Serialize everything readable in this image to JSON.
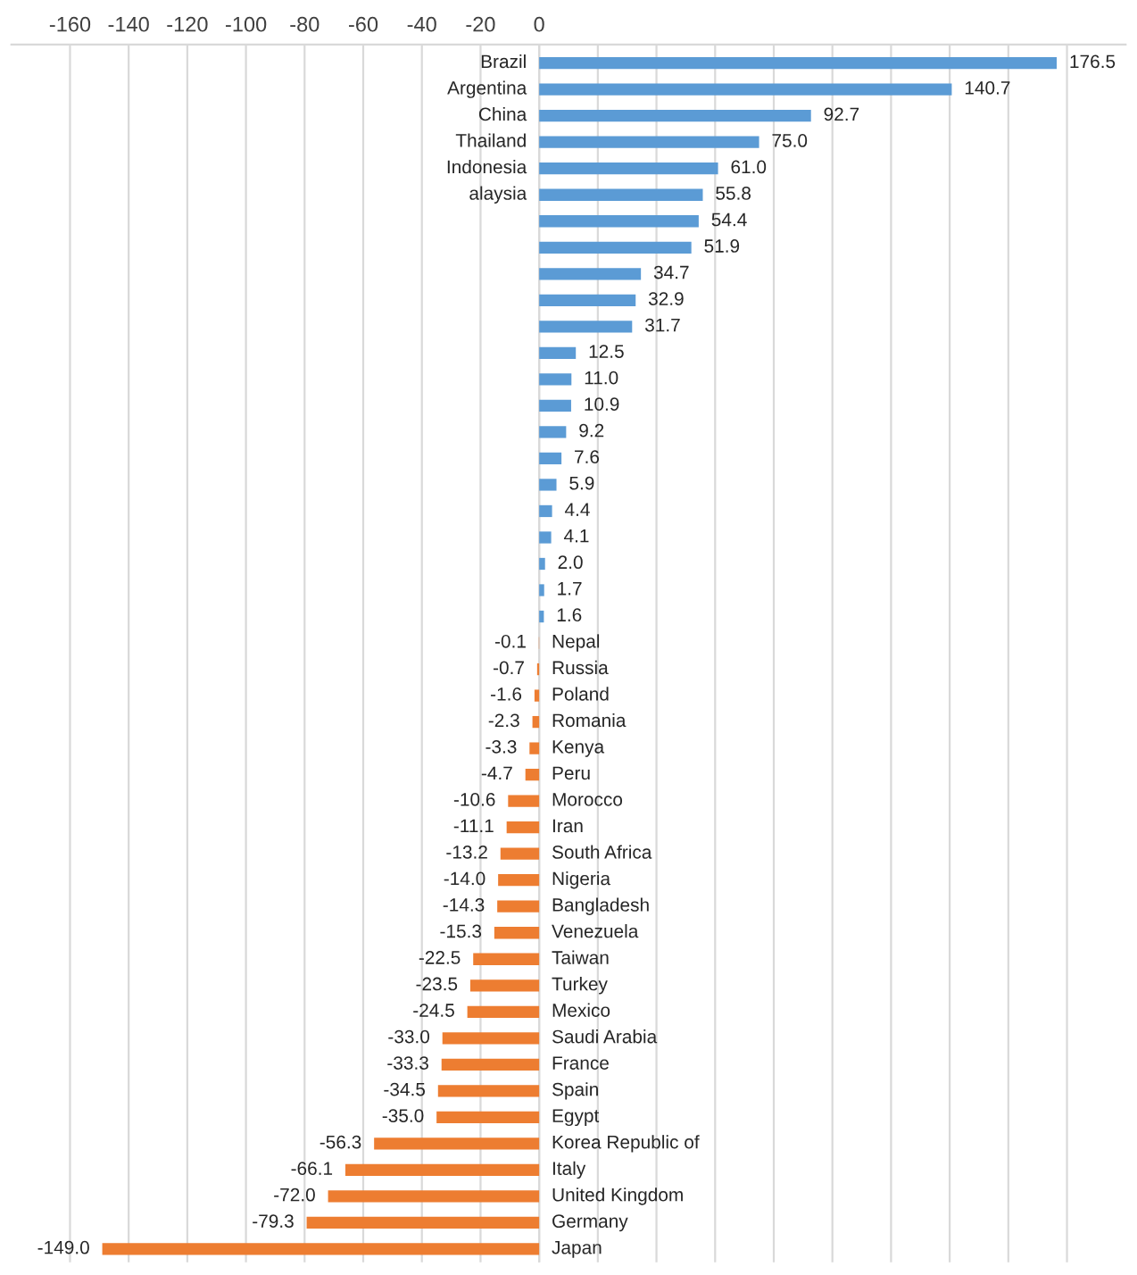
{
  "chart_data": {
    "type": "bar",
    "orientation": "horizontal",
    "categories": [
      "Brazil",
      "Argentina",
      "China",
      "Thailand",
      "Indonesia",
      "alaysia",
      null,
      null,
      null,
      null,
      null,
      null,
      null,
      null,
      null,
      null,
      null,
      null,
      null,
      null,
      null,
      null,
      "Nepal",
      "Russia",
      "Poland",
      "Romania",
      "Kenya",
      "Peru",
      "Morocco",
      "Iran",
      "South Africa",
      "Nigeria",
      "Bangladesh",
      "Venezuela",
      "Taiwan",
      "Turkey",
      "Mexico",
      "Saudi Arabia",
      "France",
      "Spain",
      "Egypt",
      "Korea Republic of",
      "Italy",
      "United Kingdom",
      "Germany",
      "Japan"
    ],
    "values": [
      176.5,
      140.7,
      92.7,
      75.0,
      61.0,
      55.8,
      54.4,
      51.9,
      34.7,
      32.9,
      31.7,
      12.5,
      11.0,
      10.9,
      9.2,
      7.6,
      5.9,
      4.4,
      4.1,
      2.0,
      1.7,
      1.6,
      -0.1,
      -0.7,
      -1.6,
      -2.3,
      -3.3,
      -4.7,
      -10.6,
      -11.1,
      -13.2,
      -14.0,
      -14.3,
      -15.3,
      -22.5,
      -23.5,
      -24.5,
      -33.0,
      -33.3,
      -34.5,
      -35.0,
      -56.3,
      -66.1,
      -72.0,
      -79.3,
      -149.0
    ],
    "colors": [
      "#5b9bd5",
      "#5b9bd5",
      "#5b9bd5",
      "#5b9bd5",
      "#5b9bd5",
      "#5b9bd5",
      "#5b9bd5",
      "#5b9bd5",
      "#5b9bd5",
      "#5b9bd5",
      "#5b9bd5",
      "#5b9bd5",
      "#5b9bd5",
      "#5b9bd5",
      "#5b9bd5",
      "#5b9bd5",
      "#5b9bd5",
      "#5b9bd5",
      "#5b9bd5",
      "#5b9bd5",
      "#5b9bd5",
      "#5b9bd5",
      "#ed7d31",
      "#ed7d31",
      "#ed7d31",
      "#ed7d31",
      "#ed7d31",
      "#ed7d31",
      "#ed7d31",
      "#ed7d31",
      "#ed7d31",
      "#ed7d31",
      "#ed7d31",
      "#ed7d31",
      "#ed7d31",
      "#ed7d31",
      "#ed7d31",
      "#ed7d31",
      "#ed7d31",
      "#ed7d31",
      "#ed7d31",
      "#ed7d31",
      "#ed7d31",
      "#ed7d31",
      "#ed7d31",
      "#ed7d31"
    ],
    "xlim": [
      -180,
      200
    ],
    "xticks": [
      -160,
      -140,
      -120,
      -100,
      -80,
      -60,
      -40,
      -20,
      0,
      {
        "value": 20,
        "label": null
      },
      {
        "value": 40,
        "label": null
      },
      {
        "value": 60,
        "label": null
      },
      {
        "value": 80,
        "label": null
      },
      {
        "value": 100,
        "label": null
      },
      {
        "value": 120,
        "label": null
      },
      {
        "value": 140,
        "label": null
      },
      {
        "value": 160,
        "label": null
      },
      {
        "value": 180,
        "label": null
      }
    ],
    "grid": "x",
    "value_labels": [
      "176.5",
      "140.7",
      "92.7",
      "75.0",
      "61.0",
      "55.8",
      "54.4",
      "51.9",
      "34.7",
      "32.9",
      "31.7",
      "12.5",
      "11.0",
      "10.9",
      "9.2",
      "7.6",
      "5.9",
      "4.4",
      "4.1",
      "2.0",
      "1.7",
      "1.6",
      "-0.1",
      "-0.7",
      "-1.6",
      "-2.3",
      "-3.3",
      "-4.7",
      "-10.6",
      "-11.1",
      "-13.2",
      "-14.0",
      "-14.3",
      "-15.3",
      "-22.5",
      "-23.5",
      "-24.5",
      "-33.0",
      "-33.3",
      "-34.5",
      "-35.0",
      "-56.3",
      "-66.1",
      "-72.0",
      "-79.3",
      "-149.0"
    ]
  }
}
